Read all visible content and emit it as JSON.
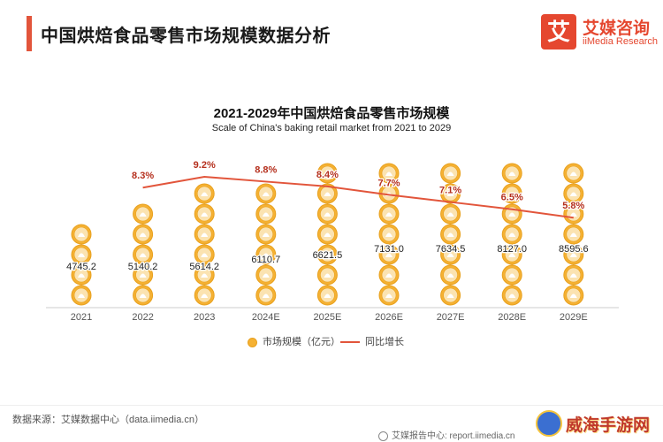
{
  "header": {
    "title": "中国烘焙食品零售市场规模数据分析",
    "logo_mark": "艾",
    "logo_cn": "艾媒咨询",
    "logo_en": "iiMedia Research"
  },
  "chart_data": {
    "type": "bar",
    "title": "2021-2029年中国烘焙食品零售市场规模",
    "subtitle": "Scale of China's baking retail market from 2021 to 2029",
    "categories": [
      "2021",
      "2022",
      "2023",
      "2024E",
      "2025E",
      "2026E",
      "2027E",
      "2028E",
      "2029E"
    ],
    "series": [
      {
        "name": "市场规模（亿元）",
        "type": "bar",
        "values": [
          4745.2,
          5140.2,
          5614.2,
          6110.7,
          6621.5,
          7131.0,
          7634.5,
          8127.0,
          8595.6
        ],
        "labels": [
          "4745.2",
          "5140.2",
          "5614.2",
          "6110.7",
          "6621.5",
          "7131.0",
          "7634.5",
          "8127.0",
          "8595.6"
        ]
      },
      {
        "name": "同比增长",
        "type": "line",
        "x": [
          "2022",
          "2023",
          "2024E",
          "2025E",
          "2026E",
          "2027E",
          "2028E",
          "2029E"
        ],
        "values": [
          8.3,
          9.2,
          8.8,
          8.4,
          7.7,
          7.1,
          6.5,
          5.8
        ],
        "labels": [
          "8.3%",
          "9.2%",
          "8.8%",
          "8.4%",
          "7.7%",
          "7.1%",
          "6.5%",
          "5.8%"
        ]
      }
    ],
    "ylim_bar": [
      0,
      9000
    ],
    "ylim_line": [
      0,
      11
    ],
    "legend_position": "bottom-center",
    "grid": false,
    "colors": {
      "bar": "#f5b133",
      "bar_edge": "#e8a11e",
      "line": "#e2553b",
      "axis": "#cccccc"
    }
  },
  "footer": {
    "source": "数据来源：艾媒数据中心（data.iimedia.cn）",
    "report": "艾媒报告中心: report.iimedia.cn",
    "watermark": "威海手游网",
    "report_icon": "iimedia-icon",
    "watermark_icon": "site-badge-icon"
  }
}
